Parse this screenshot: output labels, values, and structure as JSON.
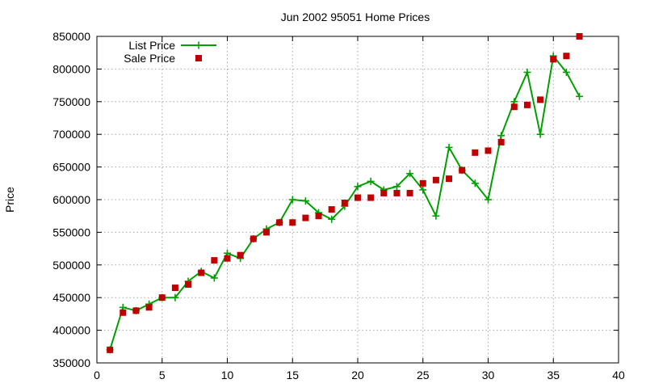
{
  "chart_data": {
    "type": "line",
    "title": "Jun 2002 95051 Home Prices",
    "xlabel": "",
    "ylabel": "Price",
    "xlim": [
      0,
      40
    ],
    "ylim": [
      350000,
      850000
    ],
    "x_ticks": [
      0,
      5,
      10,
      15,
      20,
      25,
      30,
      35,
      40
    ],
    "y_ticks": [
      350000,
      400000,
      450000,
      500000,
      550000,
      600000,
      650000,
      700000,
      750000,
      800000,
      850000
    ],
    "grid": true,
    "legend_position": "top-left",
    "series": [
      {
        "name": "List Price",
        "style": "linespoints",
        "marker": "plus",
        "color": "#00a000",
        "x": [
          1,
          2,
          3,
          4,
          5,
          6,
          7,
          8,
          9,
          10,
          11,
          12,
          13,
          14,
          15,
          16,
          17,
          18,
          19,
          20,
          21,
          22,
          23,
          24,
          25,
          26,
          27,
          28,
          29,
          30,
          31,
          32,
          33,
          34,
          35,
          36,
          37
        ],
        "values": [
          370000,
          435000,
          430000,
          440000,
          450000,
          450000,
          475000,
          490000,
          480000,
          518000,
          510000,
          540000,
          555000,
          565000,
          600000,
          598000,
          580000,
          570000,
          590000,
          620000,
          628000,
          615000,
          620000,
          640000,
          615000,
          575000,
          680000,
          645000,
          625000,
          600000,
          698000,
          750000,
          795000,
          700000,
          820000,
          795000,
          758000
        ]
      },
      {
        "name": "Sale Price",
        "style": "points",
        "marker": "square",
        "color": "#c00000",
        "x": [
          1,
          2,
          3,
          4,
          5,
          6,
          7,
          8,
          9,
          10,
          11,
          12,
          13,
          14,
          15,
          16,
          17,
          18,
          19,
          20,
          21,
          22,
          23,
          24,
          25,
          26,
          27,
          28,
          29,
          30,
          31,
          32,
          33,
          34,
          35,
          36,
          37
        ],
        "values": [
          370000,
          427000,
          430000,
          435000,
          450000,
          465000,
          470000,
          488000,
          507000,
          510000,
          515000,
          540000,
          550000,
          565000,
          565000,
          572000,
          575000,
          585000,
          595000,
          603000,
          603000,
          610000,
          610000,
          610000,
          625000,
          630000,
          632000,
          645000,
          672000,
          675000,
          688000,
          742000,
          745000,
          753000,
          815000,
          820000,
          850000
        ]
      }
    ]
  }
}
